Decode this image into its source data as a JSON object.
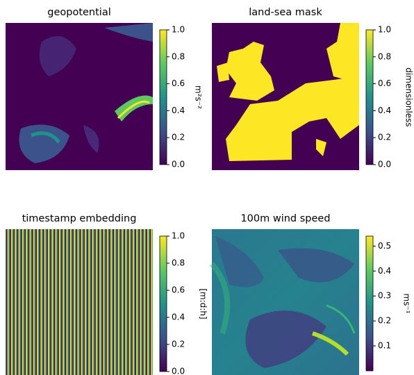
{
  "chart_data": [
    {
      "type": "heatmap",
      "title": "geopotential",
      "colorbar_label": "m²s⁻²",
      "clim": [
        0,
        1
      ],
      "cticks": [
        {
          "value": 0,
          "label": "0.0"
        },
        0.2,
        0.4,
        0.6,
        0.8,
        {
          "value": 1,
          "label": "1.0"
        }
      ],
      "colormap": "viridis"
    },
    {
      "type": "heatmap",
      "title": "land-sea mask",
      "colorbar_label": "dimensionless",
      "clim": [
        0,
        1
      ],
      "cticks": [
        {
          "value": 0,
          "label": "0.0"
        },
        0.2,
        0.4,
        0.6,
        0.8,
        {
          "value": 1,
          "label": "1.0"
        }
      ],
      "colormap": "viridis"
    },
    {
      "type": "heatmap",
      "title": "timestamp embedding",
      "colorbar_label": "[m:d:h]",
      "clim": [
        0,
        1
      ],
      "cticks": [
        {
          "value": 0,
          "label": "0.0"
        },
        0.2,
        0.4,
        0.6,
        0.8,
        {
          "value": 1,
          "label": "1.0"
        }
      ],
      "colormap": "viridis"
    },
    {
      "type": "heatmap",
      "title": "100m wind speed",
      "colorbar_label": "ms⁻¹",
      "clim": [
        0,
        0.54
      ],
      "cticks": [
        0.1,
        0.2,
        0.3,
        0.4,
        0.5
      ],
      "colormap": "viridis"
    }
  ]
}
